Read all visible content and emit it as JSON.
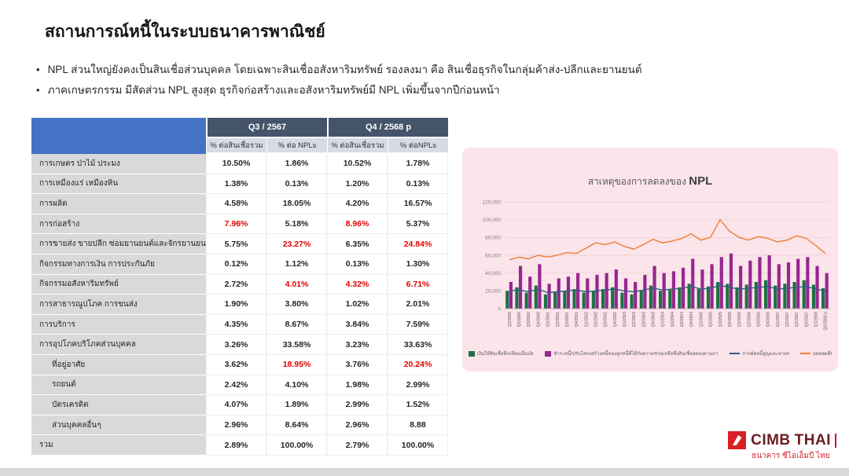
{
  "slide": {
    "title": "สถานการณ์หนี้ในระบบธนาคารพาณิชย์",
    "bullets": [
      "NPL ส่วนใหญ่ยังคงเป็นสินเชื่อส่วนบุคคล โดยเฉพาะสินเชื่ออสังหาริมทรัพย์ รองลงมา คือ สินเชื่อธุรกิจในกลุ่มค้าส่ง-ปลีกและยานยนต์",
      "ภาคเกษตรกรรม มีสัดส่วน NPL สูงสุด  ธุรกิจก่อสร้างและอสังหาริมทรัพย์มี NPL เพิ่มขึ้นจากปีก่อนหน้า"
    ]
  },
  "table": {
    "period_headers": [
      "Q3 / 2567",
      "Q4 / 2568 p"
    ],
    "sub_headers": [
      "% ต่อสินเชื่อรวม",
      "% ต่อ NPLs",
      "% ต่อสินเชื่อรวม",
      "% ต่อNPLs"
    ],
    "rows": [
      {
        "label": "การเกษตร ป่าไม้ ประมง",
        "indent": false,
        "values": [
          "10.50%",
          "1.86%",
          "10.52%",
          "1.78%"
        ],
        "red": [
          false,
          false,
          false,
          false
        ]
      },
      {
        "label": "การเหมืองแร่ เหมืองหิน",
        "indent": false,
        "values": [
          "1.38%",
          "0.13%",
          "1.20%",
          "0.13%"
        ],
        "red": [
          false,
          false,
          false,
          false
        ]
      },
      {
        "label": "การผลิต",
        "indent": false,
        "values": [
          "4.58%",
          "18.05%",
          "4.20%",
          "16.57%"
        ],
        "red": [
          false,
          false,
          false,
          false
        ]
      },
      {
        "label": "การก่อสร้าง",
        "indent": false,
        "values": [
          "7.96%",
          "5.18%",
          "8.96%",
          "5.37%"
        ],
        "red": [
          true,
          false,
          true,
          false
        ]
      },
      {
        "label": "การขายส่ง ขายปลีก ซ่อมยานยนต์และจักรยานยนต์",
        "indent": false,
        "values": [
          "5.75%",
          "23.27%",
          "6.35%",
          "24.84%"
        ],
        "red": [
          false,
          true,
          false,
          true
        ]
      },
      {
        "label": "กิจกรรมทางการเงิน การประกันภัย",
        "indent": false,
        "values": [
          "0.12%",
          "1.12%",
          "0.13%",
          "1.30%"
        ],
        "red": [
          false,
          false,
          false,
          false
        ]
      },
      {
        "label": "กิจกรรมอสังหาริมทรัพย์",
        "indent": false,
        "values": [
          "2.72%",
          "4.01%",
          "4.32%",
          "6.71%"
        ],
        "red": [
          false,
          true,
          true,
          true
        ]
      },
      {
        "label": "การสาธารณูปโภค การขนส่ง",
        "indent": false,
        "values": [
          "1.90%",
          "3.80%",
          "1.02%",
          "2.01%"
        ],
        "red": [
          false,
          false,
          false,
          false
        ]
      },
      {
        "label": "การบริการ",
        "indent": false,
        "values": [
          "4.35%",
          "8.67%",
          "3.84%",
          "7.59%"
        ],
        "red": [
          false,
          false,
          false,
          false
        ]
      },
      {
        "label": "การอุปโภคบริโภคส่วนบุคคล",
        "indent": false,
        "values": [
          "3.26%",
          "33.58%",
          "3.23%",
          "33.63%"
        ],
        "red": [
          false,
          false,
          false,
          false
        ]
      },
      {
        "label": "ที่อยู่อาศัย",
        "indent": true,
        "values": [
          "3.62%",
          "18.95%",
          "3.76%",
          "20.24%"
        ],
        "red": [
          false,
          true,
          false,
          true
        ]
      },
      {
        "label": "รถยนต์",
        "indent": true,
        "values": [
          "2.42%",
          "4.10%",
          "1.98%",
          "2.99%"
        ],
        "red": [
          false,
          false,
          false,
          false
        ]
      },
      {
        "label": "บัตรเครดิต",
        "indent": true,
        "values": [
          "4.07%",
          "1.89%",
          "2.99%",
          "1.52%"
        ],
        "red": [
          false,
          false,
          false,
          false
        ]
      },
      {
        "label": "ส่วนบุคคลอื่นๆ",
        "indent": true,
        "values": [
          "2.96%",
          "8.64%",
          "2.96%",
          "8.88"
        ],
        "red": [
          false,
          false,
          false,
          false
        ]
      },
      {
        "label": "รวม",
        "indent": false,
        "values": [
          "2.89%",
          "100.00%",
          "2.79%",
          "100.00%"
        ],
        "red": [
          false,
          false,
          false,
          false
        ]
      }
    ]
  },
  "chart": {
    "title_prefix": "สาเหตุของการลดลงของ",
    "title_emph": "NPL"
  },
  "chart_data": {
    "type": "bar",
    "title": "สาเหตุของการลดลงของ NPL",
    "ylim": [
      0,
      120000
    ],
    "yticks": [
      0,
      20000,
      40000,
      60000,
      80000,
      100000,
      120000
    ],
    "x": [
      "Q1/2560",
      "Q2/2560",
      "Q3/2560",
      "Q4/2560",
      "Q1/2561",
      "Q2/2561",
      "Q3/2561",
      "Q4/2561",
      "Q1/2562",
      "Q2/2562",
      "Q3/2562",
      "Q4/2562",
      "Q1/2563",
      "Q2/2563",
      "Q3/2563",
      "Q4/2563",
      "Q1/2564",
      "Q2/2564",
      "Q3/2564",
      "Q4/2564",
      "Q1/2565",
      "Q2/2565",
      "Q3/2565",
      "Q4/2565",
      "Q1/2566",
      "Q2/2566",
      "Q3/2566",
      "Q4/2566",
      "Q1/2567",
      "Q2/2567",
      "Q3/2567",
      "Q4/2567",
      "Q1/2568",
      "Q2/2568 p"
    ],
    "series": [
      {
        "name": "เงินให้สินเชื่อที่เปลี่ยนเป็นเงินดี",
        "type": "bar",
        "color": "#1e7145",
        "values": [
          20000,
          24000,
          18000,
          26000,
          16000,
          18000,
          20000,
          22000,
          18000,
          20000,
          22000,
          24000,
          18000,
          16000,
          20000,
          26000,
          20000,
          22000,
          24000,
          28000,
          22000,
          25000,
          30000,
          28000,
          24000,
          27000,
          30000,
          32000,
          26000,
          28000,
          30000,
          32000,
          27000,
          23000
        ]
      },
      {
        "name": "ชำระหนี้/ปรับโครงสร้างหนี้ของลูกหนี้ที่ได้รับความช่วยเหลือซึ่งสินเชื่อลดลงตามภาระหนี้",
        "type": "bar",
        "color": "#96278f",
        "values": [
          30000,
          48000,
          36000,
          50000,
          28000,
          34000,
          36000,
          40000,
          34000,
          38000,
          40000,
          44000,
          34000,
          30000,
          38000,
          48000,
          40000,
          42000,
          46000,
          56000,
          44000,
          50000,
          58000,
          62000,
          48000,
          54000,
          58000,
          60000,
          50000,
          52000,
          56000,
          58000,
          48000,
          40000
        ]
      },
      {
        "name": "การตัดหนี้สูญและขายหนี้",
        "type": "line",
        "color": "#2e5e80",
        "values": [
          20000,
          21000,
          19000,
          22000,
          18000,
          19000,
          20000,
          21000,
          19000,
          20000,
          21000,
          22000,
          20000,
          19000,
          21000,
          23000,
          21000,
          22000,
          23000,
          25000,
          22000,
          23000,
          26000,
          24000,
          22000,
          23000,
          24000,
          25000,
          22000,
          23000,
          24000,
          25000,
          22000,
          20000
        ]
      },
      {
        "name": "ลดยอดอื่น",
        "type": "line",
        "color": "#ed7d31",
        "values": [
          55000,
          58000,
          56000,
          60000,
          58000,
          60000,
          63000,
          62000,
          68000,
          74000,
          72000,
          75000,
          70000,
          67000,
          72000,
          78000,
          74000,
          76000,
          79000,
          84000,
          77000,
          80000,
          100000,
          87000,
          80000,
          77000,
          81000,
          79000,
          75000,
          77000,
          82000,
          79000,
          71000,
          62000
        ]
      }
    ]
  },
  "logo": {
    "brand_cimb": "CIMB",
    "brand_thai": "THAI",
    "subtitle": "ธนาคาร ซีไอเอ็มบี ไทย"
  }
}
